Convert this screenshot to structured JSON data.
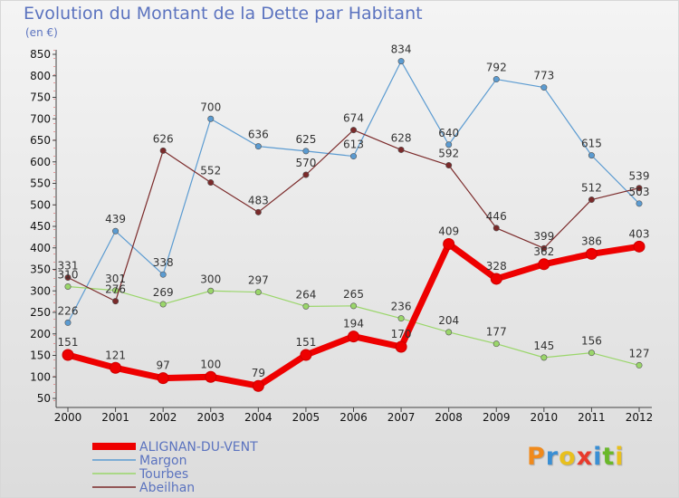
{
  "header": {
    "title": "Evolution du Montant de la Dette par Habitant",
    "subtitle": "(en €)"
  },
  "logo": {
    "text": "Proxiti",
    "colors": [
      "#f08a1c",
      "#3a8fd4",
      "#e8c01e",
      "#e83a2c",
      "#3a8fd4",
      "#6ab82a",
      "#e8c01e"
    ]
  },
  "chart_data": {
    "type": "line",
    "x": [
      "2000",
      "2001",
      "2002",
      "2003",
      "2004",
      "2005",
      "2006",
      "2007",
      "2008",
      "2009",
      "2010",
      "2011",
      "2012"
    ],
    "yticks": [
      50,
      100,
      150,
      200,
      250,
      300,
      350,
      400,
      450,
      500,
      550,
      600,
      650,
      700,
      750,
      800,
      850
    ],
    "ylim": [
      50,
      850
    ],
    "grid": false,
    "legend_position": "bottom-left",
    "series": [
      {
        "name": "Margon",
        "color": "#5b9bd1",
        "width": 1.2,
        "values": [
          226,
          439,
          338,
          700,
          636,
          625,
          613,
          834,
          640,
          792,
          773,
          615,
          503
        ]
      },
      {
        "name": "Tourbes",
        "color": "#9ad66a",
        "width": 1.2,
        "values": [
          310,
          301,
          269,
          300,
          297,
          264,
          265,
          236,
          204,
          177,
          145,
          156,
          127
        ]
      },
      {
        "name": "Abeilhan",
        "color": "#7b2a2a",
        "width": 1.2,
        "values": [
          331,
          276,
          626,
          552,
          483,
          570,
          674,
          628,
          592,
          446,
          399,
          512,
          539
        ]
      },
      {
        "name": "ALIGNAN-DU-VENT",
        "color": "#ee0000",
        "width": 7,
        "values": [
          151,
          121,
          97,
          100,
          79,
          151,
          194,
          170,
          409,
          328,
          362,
          386,
          403
        ]
      }
    ],
    "legend_order": [
      "ALIGNAN-DU-VENT",
      "Margon",
      "Tourbes",
      "Abeilhan"
    ]
  }
}
